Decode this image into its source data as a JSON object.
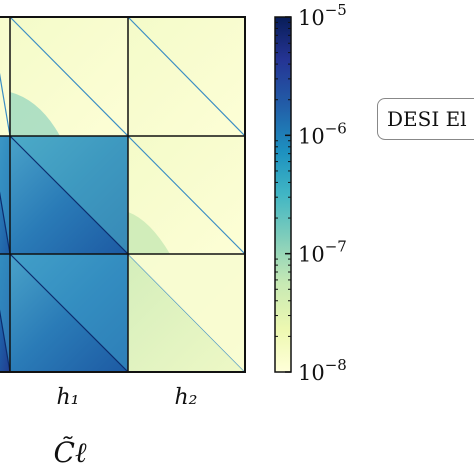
{
  "chart_data": {
    "type": "heatmap",
    "scale": "log",
    "block_labels_x": [
      "h₁",
      "h₂"
    ],
    "xlabel": "C̃ℓ",
    "colorbar": {
      "min": 1e-08,
      "max": 1e-05,
      "ticks": [
        {
          "base": "10",
          "exp": "−5",
          "value": 1e-05
        },
        {
          "base": "10",
          "exp": "−6",
          "value": 1e-06
        },
        {
          "base": "10",
          "exp": "−7",
          "value": 1e-07
        },
        {
          "base": "10",
          "exp": "−8",
          "value": 1e-08
        }
      ],
      "colors": [
        "#ffffd9",
        "#edf8b1",
        "#c7e9b4",
        "#7fcdbb",
        "#41b6c4",
        "#1d91c0",
        "#225ea8",
        "#253494",
        "#081d58"
      ]
    },
    "grid": true,
    "legend_text": "DESI El",
    "legend_placement": "right"
  }
}
